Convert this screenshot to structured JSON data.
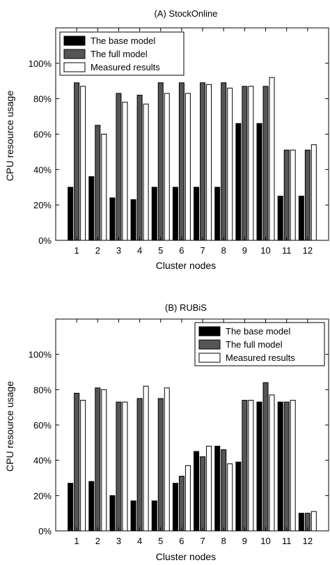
{
  "chart_data": [
    {
      "type": "bar",
      "title": "(A) StockOnline",
      "xlabel": "Cluster nodes",
      "ylabel": "CPU resource usage",
      "categories": [
        "1",
        "2",
        "3",
        "4",
        "5",
        "6",
        "7",
        "8",
        "9",
        "10",
        "11",
        "12"
      ],
      "ylim": [
        0,
        120
      ],
      "yticks": [
        "0%",
        "20%",
        "40%",
        "60%",
        "80%",
        "100%"
      ],
      "legend_position": "top-left",
      "series": [
        {
          "name": "The base model",
          "color": "#000000",
          "values": [
            30,
            36,
            24,
            23,
            30,
            30,
            30,
            30,
            66,
            66,
            25,
            25
          ]
        },
        {
          "name": "The full model",
          "color": "#555555",
          "values": [
            89,
            65,
            83,
            82,
            89,
            89,
            89,
            89,
            87,
            87,
            51,
            51
          ]
        },
        {
          "name": "Measured results",
          "color": "#ffffff",
          "values": [
            87,
            60,
            78,
            77,
            83,
            83,
            88,
            86,
            87,
            92,
            51,
            54
          ]
        }
      ]
    },
    {
      "type": "bar",
      "title": "(B) RUBiS",
      "xlabel": "Cluster nodes",
      "ylabel": "CPU resource usage",
      "categories": [
        "1",
        "2",
        "3",
        "4",
        "5",
        "6",
        "7",
        "8",
        "9",
        "10",
        "11",
        "12"
      ],
      "ylim": [
        0,
        120
      ],
      "yticks": [
        "0%",
        "20%",
        "40%",
        "60%",
        "80%",
        "100%"
      ],
      "legend_position": "top-right",
      "series": [
        {
          "name": "The base model",
          "color": "#000000",
          "values": [
            27,
            28,
            20,
            17,
            17,
            27,
            45,
            48,
            39,
            73,
            73,
            10
          ]
        },
        {
          "name": "The full model",
          "color": "#555555",
          "values": [
            78,
            81,
            73,
            75,
            75,
            31,
            42,
            46,
            74,
            84,
            73,
            10
          ]
        },
        {
          "name": "Measured results",
          "color": "#ffffff",
          "values": [
            74,
            80,
            73,
            82,
            81,
            37,
            48,
            38,
            74,
            77,
            74,
            11
          ]
        }
      ]
    }
  ]
}
